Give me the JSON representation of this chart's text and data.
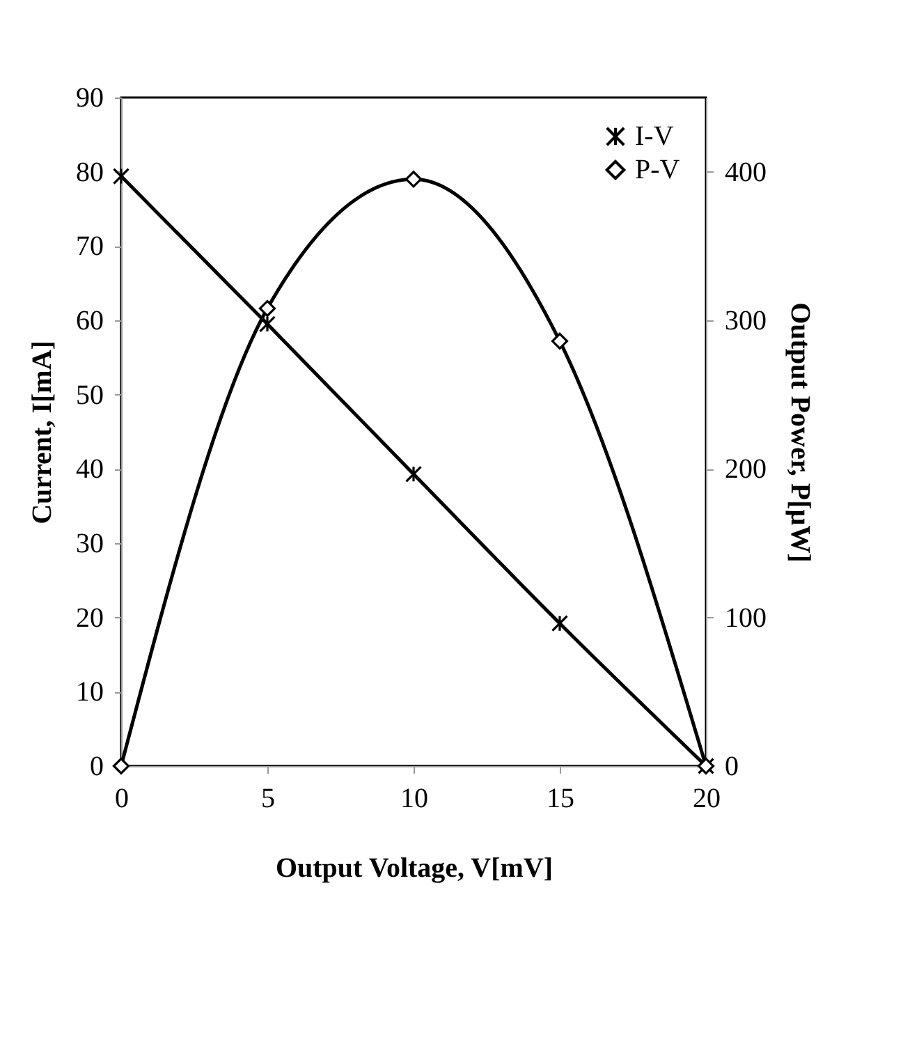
{
  "chart_data": {
    "type": "line",
    "xlabel": "Output Voltage, V[mV]",
    "ylabel": "Current, I[mA]",
    "y2label": "Output Power, P[µW]",
    "x": [
      0,
      5,
      10,
      15,
      20
    ],
    "series": [
      {
        "name": "I-V",
        "color": "#000000",
        "marker": "cross",
        "values": [
          79.4,
          59.5,
          39.3,
          19.2,
          0
        ]
      },
      {
        "name": "P-V",
        "color": "#000000",
        "marker": "diamond",
        "axis": "y2",
        "values": [
          0,
          308,
          395,
          286,
          0
        ]
      }
    ],
    "xlim": [
      0,
      20
    ],
    "xticks": [
      0,
      5,
      10,
      15,
      20
    ],
    "ylim": [
      0,
      90
    ],
    "yticks": [
      0,
      10,
      20,
      30,
      40,
      50,
      60,
      70,
      80,
      90
    ],
    "y2lim": [
      0,
      450
    ],
    "y2ticks": [
      0,
      100,
      200,
      300,
      400
    ],
    "grid": false,
    "legend": "top right",
    "line_style": "solid"
  }
}
